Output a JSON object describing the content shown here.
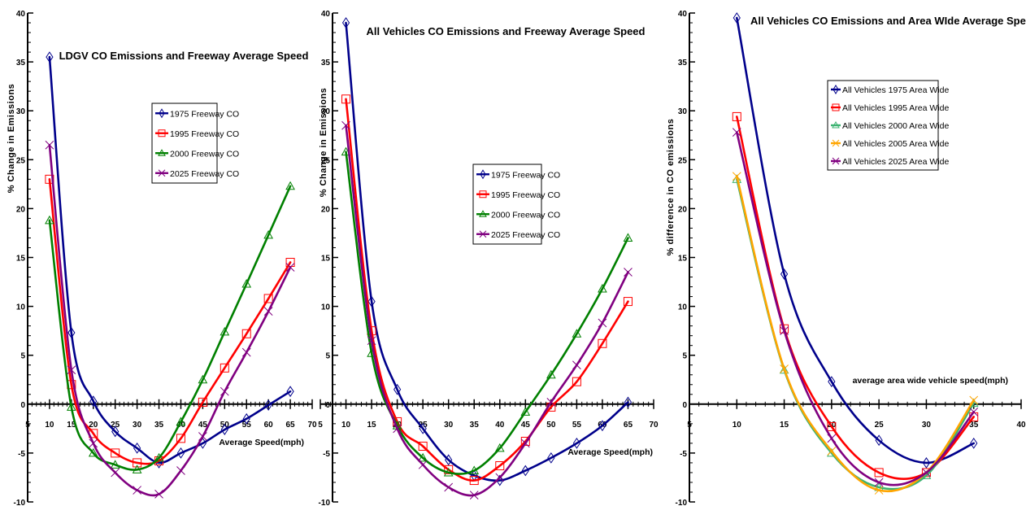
{
  "chart_data": [
    {
      "type": "line",
      "title": "LDGV CO Emissions and Freeway Average Speed",
      "xlabel": "Average Speed(mph)",
      "ylabel": "% Change in Emissions",
      "xlim": [
        5,
        70
      ],
      "ylim": [
        -10,
        40
      ],
      "xticks": [
        5,
        10,
        15,
        20,
        25,
        30,
        35,
        40,
        45,
        50,
        55,
        60,
        65,
        70
      ],
      "yticks": [
        -10,
        -5,
        0,
        5,
        10,
        15,
        20,
        25,
        30,
        35,
        40
      ],
      "legend_position": "center-right",
      "series": [
        {
          "name": "1975 Freeway CO",
          "color": "#00008B",
          "marker": "diamond",
          "x": [
            10,
            15,
            20,
            25,
            30,
            35,
            40,
            45,
            50,
            55,
            60,
            65
          ],
          "y": [
            35.5,
            7.3,
            0.3,
            -2.8,
            -4.5,
            -6.0,
            -5.0,
            -4.0,
            -2.6,
            -1.5,
            -0.1,
            1.3
          ]
        },
        {
          "name": "1995 Freeway CO",
          "color": "#FF0000",
          "marker": "square",
          "x": [
            10,
            15,
            20,
            25,
            30,
            35,
            40,
            45,
            50,
            55,
            60,
            65
          ],
          "y": [
            23.0,
            2.0,
            -3.0,
            -5.0,
            -6.0,
            -5.8,
            -3.5,
            0.2,
            3.7,
            7.2,
            10.8,
            14.5
          ]
        },
        {
          "name": "2000 Freeway CO",
          "color": "#008000",
          "marker": "triangle",
          "x": [
            10,
            15,
            20,
            25,
            30,
            35,
            40,
            45,
            50,
            55,
            60,
            65
          ],
          "y": [
            18.8,
            -0.3,
            -5.0,
            -6.2,
            -6.7,
            -5.5,
            -1.8,
            2.5,
            7.4,
            12.3,
            17.3,
            22.3
          ]
        },
        {
          "name": "2025 Freeway CO",
          "color": "#800080",
          "marker": "cross",
          "x": [
            10,
            15,
            20,
            25,
            30,
            35,
            40,
            45,
            50,
            55,
            60,
            65
          ],
          "y": [
            26.5,
            3.5,
            -4.0,
            -7.0,
            -8.8,
            -9.2,
            -6.8,
            -3.3,
            1.3,
            5.3,
            9.5,
            14.0
          ]
        }
      ]
    },
    {
      "type": "line",
      "title": "All Vehicles CO Emissions and Freeway Average Speed",
      "xlabel": "Average Speed(mph)",
      "ylabel": "% Change in Emissions",
      "xlim": [
        5,
        70
      ],
      "ylim": [
        -10,
        40
      ],
      "xticks": [
        5,
        10,
        15,
        20,
        25,
        30,
        35,
        40,
        45,
        50,
        55,
        60,
        65,
        70
      ],
      "yticks": [
        -10,
        -5,
        0,
        5,
        10,
        15,
        20,
        25,
        30,
        35,
        40
      ],
      "legend_position": "center-right",
      "series": [
        {
          "name": "1975 Freeway CO",
          "color": "#00008B",
          "marker": "diamond",
          "x": [
            10,
            15,
            20,
            25,
            30,
            35,
            40,
            45,
            50,
            55,
            60,
            65
          ],
          "y": [
            39.0,
            10.5,
            1.5,
            -2.5,
            -5.7,
            -7.3,
            -7.8,
            -6.8,
            -5.5,
            -4.0,
            -2.2,
            0.2
          ]
        },
        {
          "name": "1995 Freeway CO",
          "color": "#FF0000",
          "marker": "square",
          "x": [
            10,
            15,
            20,
            25,
            30,
            35,
            40,
            45,
            50,
            55,
            60,
            65
          ],
          "y": [
            31.2,
            7.5,
            -1.8,
            -4.3,
            -6.7,
            -7.8,
            -6.3,
            -3.8,
            -0.3,
            2.3,
            6.2,
            10.5
          ]
        },
        {
          "name": "2000 Freeway CO",
          "color": "#008000",
          "marker": "triangle",
          "x": [
            10,
            15,
            20,
            25,
            30,
            35,
            40,
            45,
            50,
            55,
            60,
            65
          ],
          "y": [
            25.8,
            5.2,
            -2.2,
            -5.5,
            -7.0,
            -6.8,
            -4.5,
            -0.8,
            3.0,
            7.2,
            11.8,
            17.0
          ]
        },
        {
          "name": "2025 Freeway CO",
          "color": "#800080",
          "marker": "cross",
          "x": [
            10,
            15,
            20,
            25,
            30,
            35,
            40,
            45,
            50,
            55,
            60,
            65
          ],
          "y": [
            28.5,
            6.5,
            -2.5,
            -6.2,
            -8.5,
            -9.3,
            -7.5,
            -4.0,
            0.2,
            4.0,
            8.3,
            13.5
          ]
        }
      ]
    },
    {
      "type": "line",
      "title": "All Vehicles CO Emissions and Area WIde Average Speed",
      "xlabel": "average area wide vehicle speed(mph)",
      "ylabel": "% difference in CO emissions",
      "xlim": [
        5,
        40
      ],
      "ylim": [
        -10,
        40
      ],
      "xticks": [
        5,
        10,
        15,
        20,
        25,
        30,
        35,
        40
      ],
      "yticks": [
        -10,
        -5,
        0,
        5,
        10,
        15,
        20,
        25,
        30,
        35,
        40
      ],
      "legend_position": "upper-center",
      "series": [
        {
          "name": "All Vehicles 1975 Area Wide",
          "color": "#00008B",
          "marker": "diamond",
          "x": [
            10,
            15,
            20,
            25,
            30,
            35
          ],
          "y": [
            39.5,
            13.3,
            2.3,
            -3.7,
            -6.0,
            -4.0
          ]
        },
        {
          "name": "All Vehicles 1995 Area Wide",
          "color": "#FF0000",
          "marker": "square",
          "x": [
            10,
            15,
            20,
            25,
            30,
            35
          ],
          "y": [
            29.4,
            7.7,
            -2.3,
            -7.0,
            -7.0,
            -1.3
          ]
        },
        {
          "name": "All Vehicles 2000 Area Wide",
          "color": "#3CB371",
          "marker": "triangle",
          "x": [
            10,
            15,
            20,
            25,
            30,
            35
          ],
          "y": [
            23.0,
            3.5,
            -5.0,
            -8.5,
            -7.3,
            0.1
          ]
        },
        {
          "name": "All Vehicles 2005 Area Wide",
          "color": "#FFA500",
          "marker": "cross",
          "x": [
            10,
            15,
            20,
            25,
            30,
            35
          ],
          "y": [
            23.3,
            3.6,
            -4.8,
            -8.8,
            -7.0,
            0.4
          ]
        },
        {
          "name": "All Vehicles 2025 Area Wide",
          "color": "#800080",
          "marker": "cross",
          "x": [
            10,
            15,
            20,
            25,
            30,
            35
          ],
          "y": [
            27.8,
            7.5,
            -3.5,
            -8.0,
            -7.0,
            -0.8
          ]
        }
      ]
    }
  ]
}
